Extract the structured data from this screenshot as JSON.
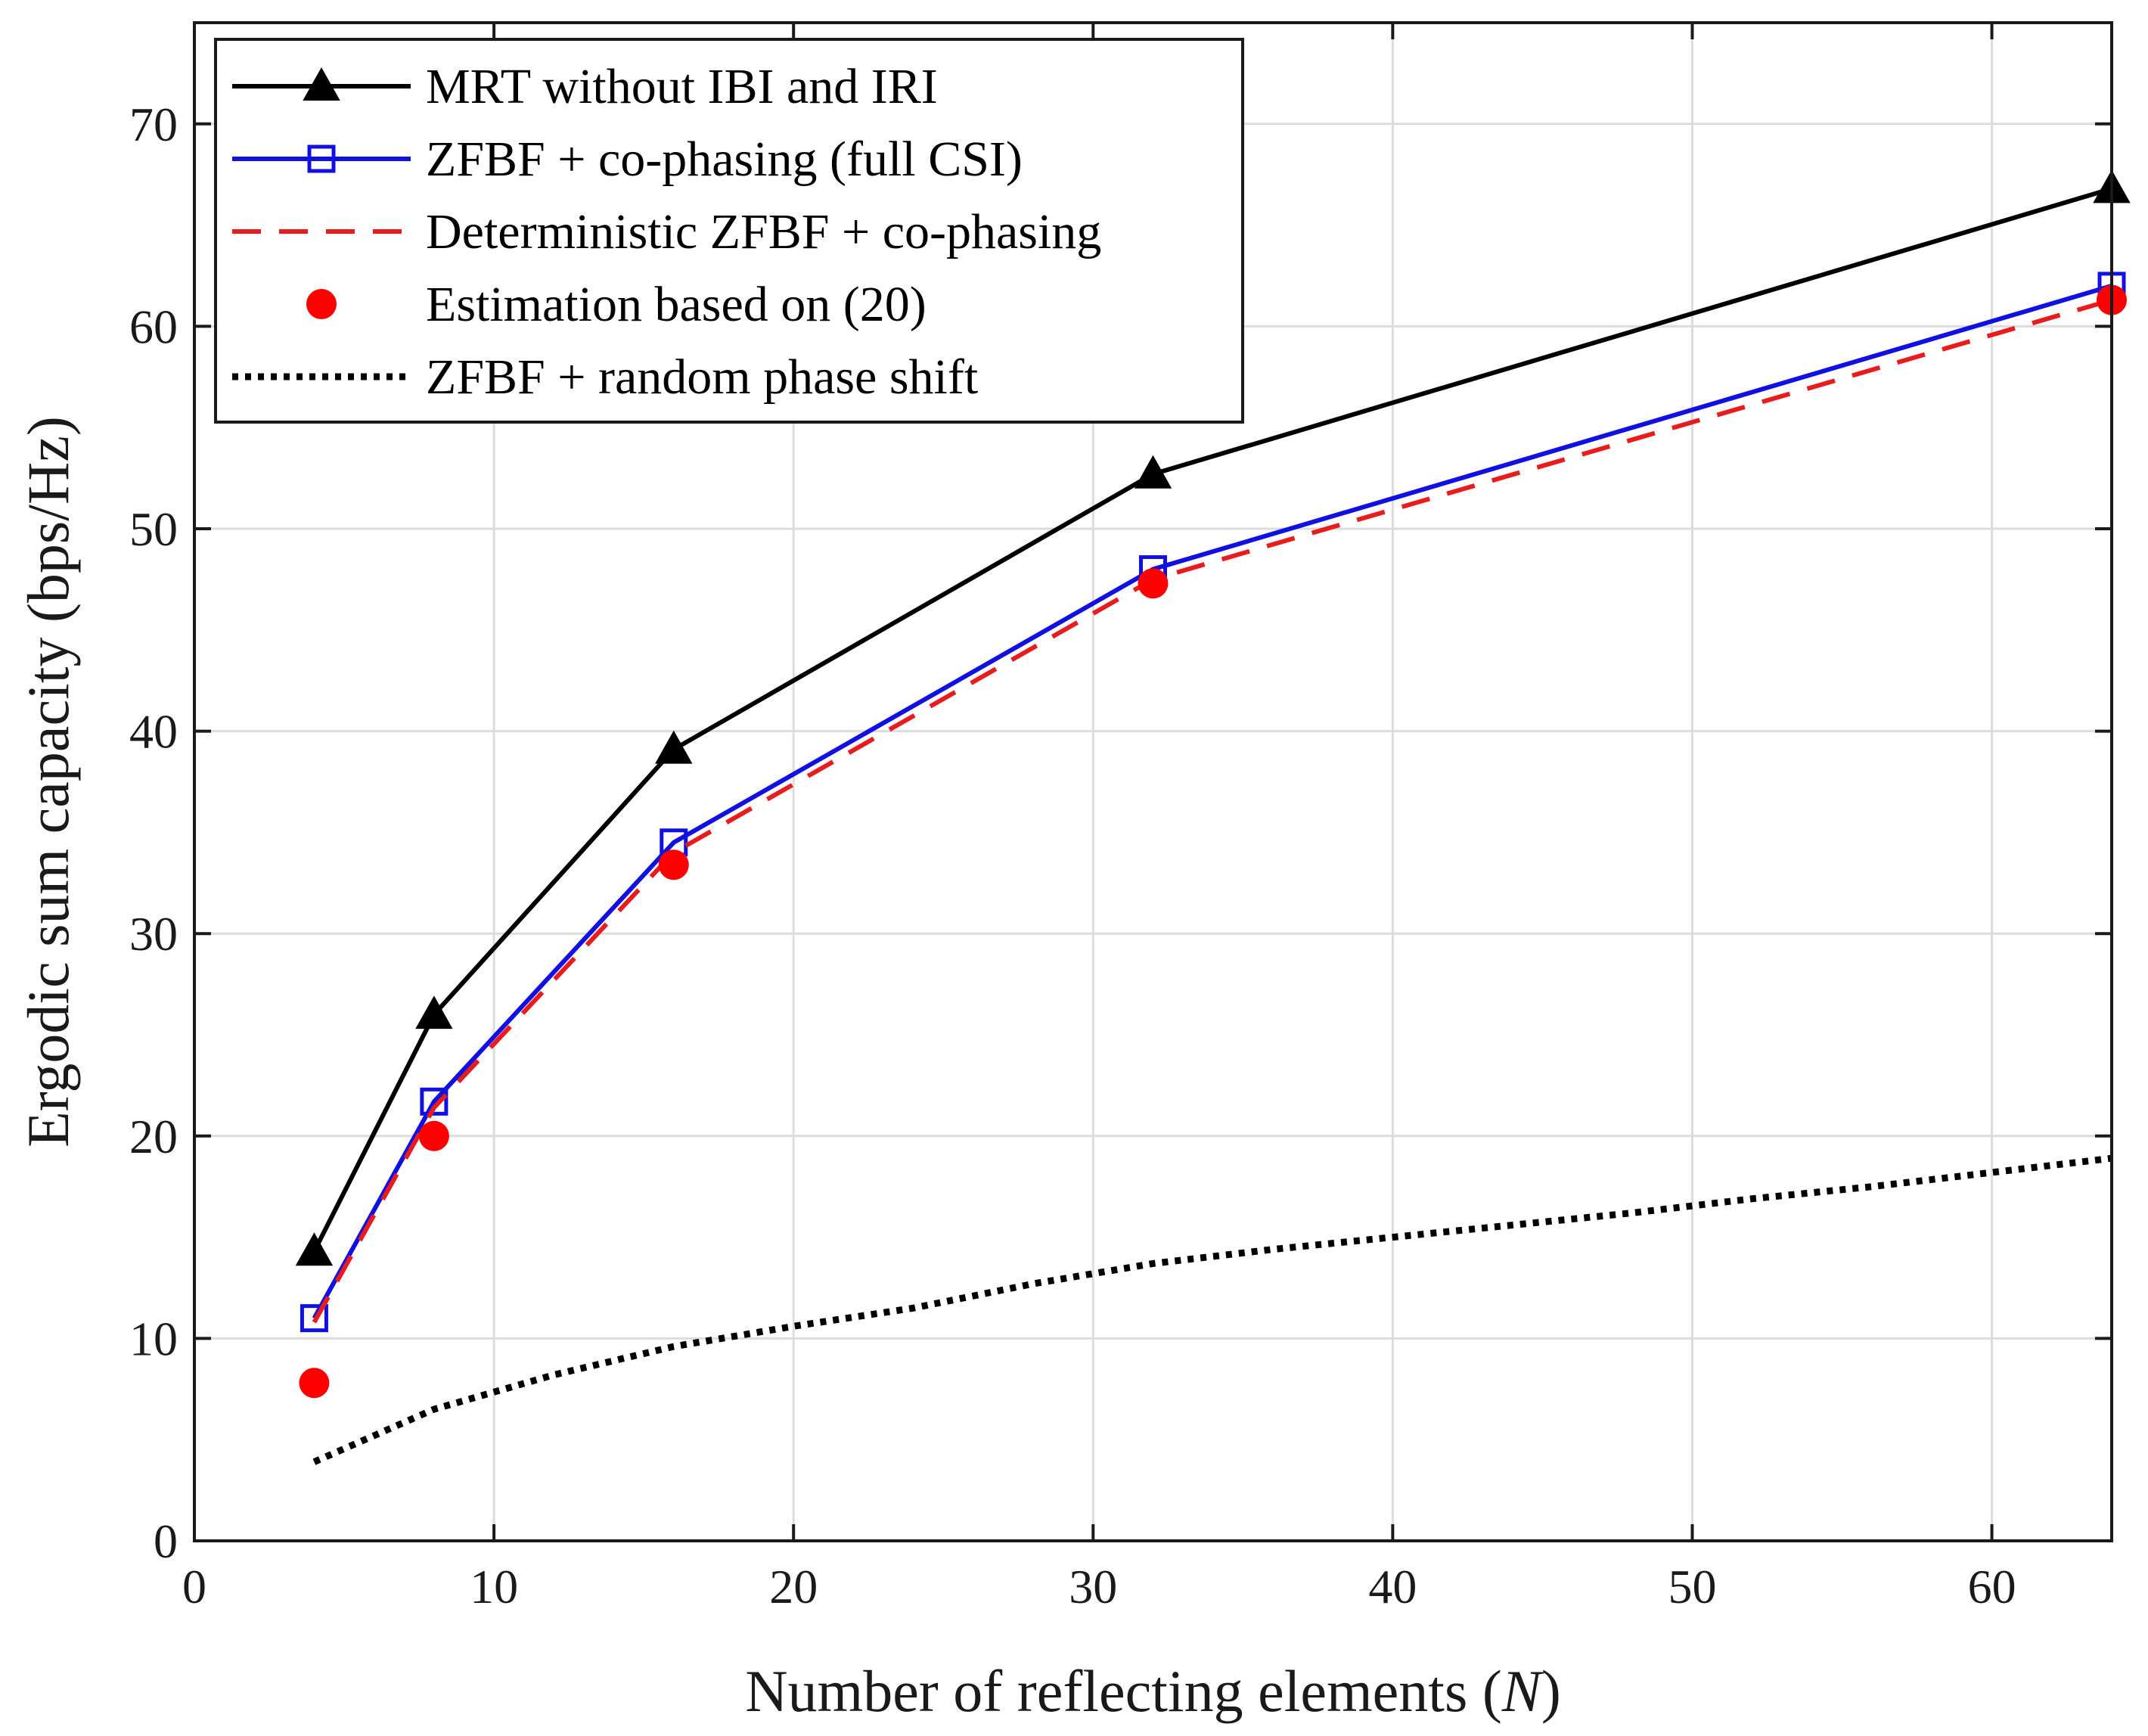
{
  "chart_data": {
    "type": "line",
    "title": "",
    "xlabel": "Number of reflecting elements",
    "xlabel_var": "N",
    "ylabel": "Ergodic sum capacity (bps/Hz)",
    "xlim": [
      0,
      64
    ],
    "ylim": [
      0,
      75
    ],
    "xticks": [
      0,
      10,
      20,
      30,
      40,
      50,
      60
    ],
    "yticks": [
      0,
      10,
      20,
      30,
      40,
      50,
      60,
      70
    ],
    "grid": true,
    "legend_position": "top-left",
    "series": [
      {
        "name": "MRT without IBI and IRI",
        "color": "#000000",
        "line": "solid",
        "marker": "triangle",
        "x": [
          4,
          8,
          16,
          32,
          64
        ],
        "y": [
          14.3,
          26.0,
          39.1,
          52.7,
          66.8
        ]
      },
      {
        "name": "ZFBF + co-phasing (full CSI)",
        "color": "#1010e0",
        "line": "solid",
        "marker": "square",
        "x": [
          4,
          8,
          16,
          32,
          64
        ],
        "y": [
          11.0,
          21.7,
          34.5,
          48.0,
          62.0
        ]
      },
      {
        "name": "Deterministic ZFBF + co-phasing",
        "color": "#e81c1c",
        "line": "dashed",
        "marker": "none",
        "x": [
          4,
          8,
          16,
          32,
          64
        ],
        "y": [
          10.8,
          21.4,
          34.0,
          47.5,
          61.3
        ]
      },
      {
        "name": "Estimation based on (20)",
        "color": "#ff0000",
        "line": "none",
        "marker": "circle",
        "x": [
          4,
          8,
          16,
          32,
          64
        ],
        "y": [
          7.8,
          20.0,
          33.4,
          47.3,
          61.3
        ]
      },
      {
        "name": "ZFBF + random phase shift",
        "color": "#000000",
        "line": "dotted",
        "marker": "none",
        "x": [
          4,
          8,
          12,
          16,
          20,
          24,
          28,
          32,
          36,
          40,
          44,
          48,
          52,
          56,
          60,
          64
        ],
        "y": [
          3.9,
          6.5,
          8.2,
          9.6,
          10.6,
          11.5,
          12.7,
          13.7,
          14.4,
          15.0,
          15.6,
          16.2,
          16.9,
          17.5,
          18.2,
          18.9
        ]
      }
    ]
  }
}
